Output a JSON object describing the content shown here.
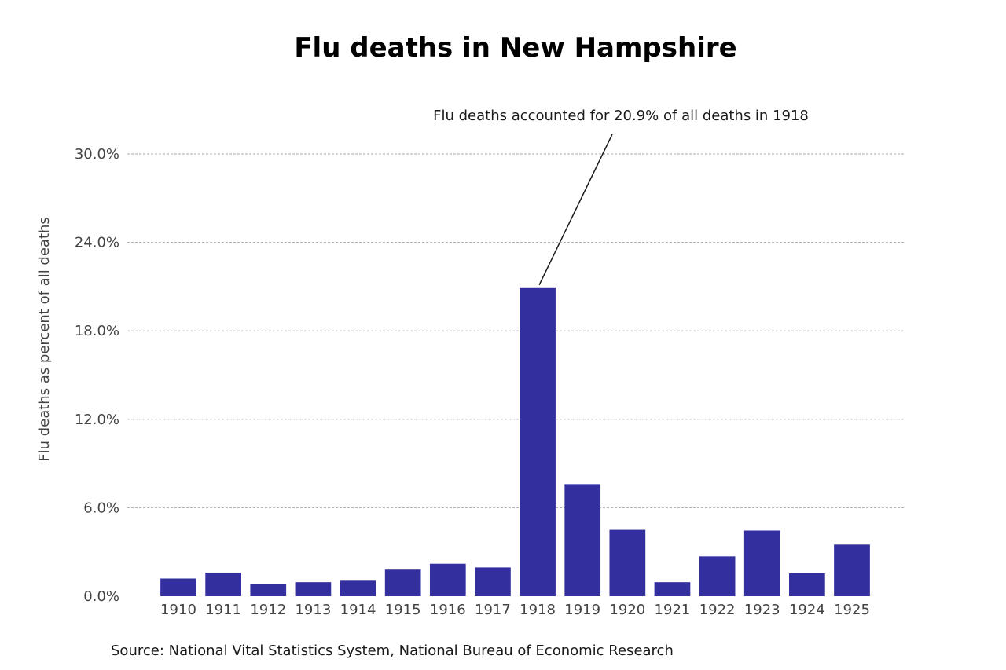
{
  "chart_data": {
    "type": "bar",
    "title": "Flu deaths in New Hampshire",
    "xlabel": "",
    "ylabel": "Flu deaths as percent of all deaths",
    "categories": [
      "1910",
      "1911",
      "1912",
      "1913",
      "1914",
      "1915",
      "1916",
      "1917",
      "1918",
      "1919",
      "1920",
      "1921",
      "1922",
      "1923",
      "1924",
      "1925"
    ],
    "values": [
      1.2,
      1.6,
      0.8,
      0.95,
      1.05,
      1.8,
      2.2,
      1.95,
      20.9,
      7.6,
      4.5,
      0.95,
      2.7,
      4.45,
      1.55,
      3.5
    ],
    "ylim": [
      0,
      30
    ],
    "yticks": [
      0,
      6,
      12,
      18,
      24,
      30
    ],
    "ytick_labels": [
      "0.0%",
      "6.0%",
      "12.0%",
      "18.0%",
      "24.0%",
      "30.0%"
    ],
    "grid": true,
    "bar_color": "#332f9e",
    "annotation": {
      "text": "Flu deaths accounted for 20.9% of all deaths in 1918",
      "category": "1918",
      "value": 20.9
    },
    "source": "Source: National Vital Statistics System, National Bureau of Economic Research"
  }
}
